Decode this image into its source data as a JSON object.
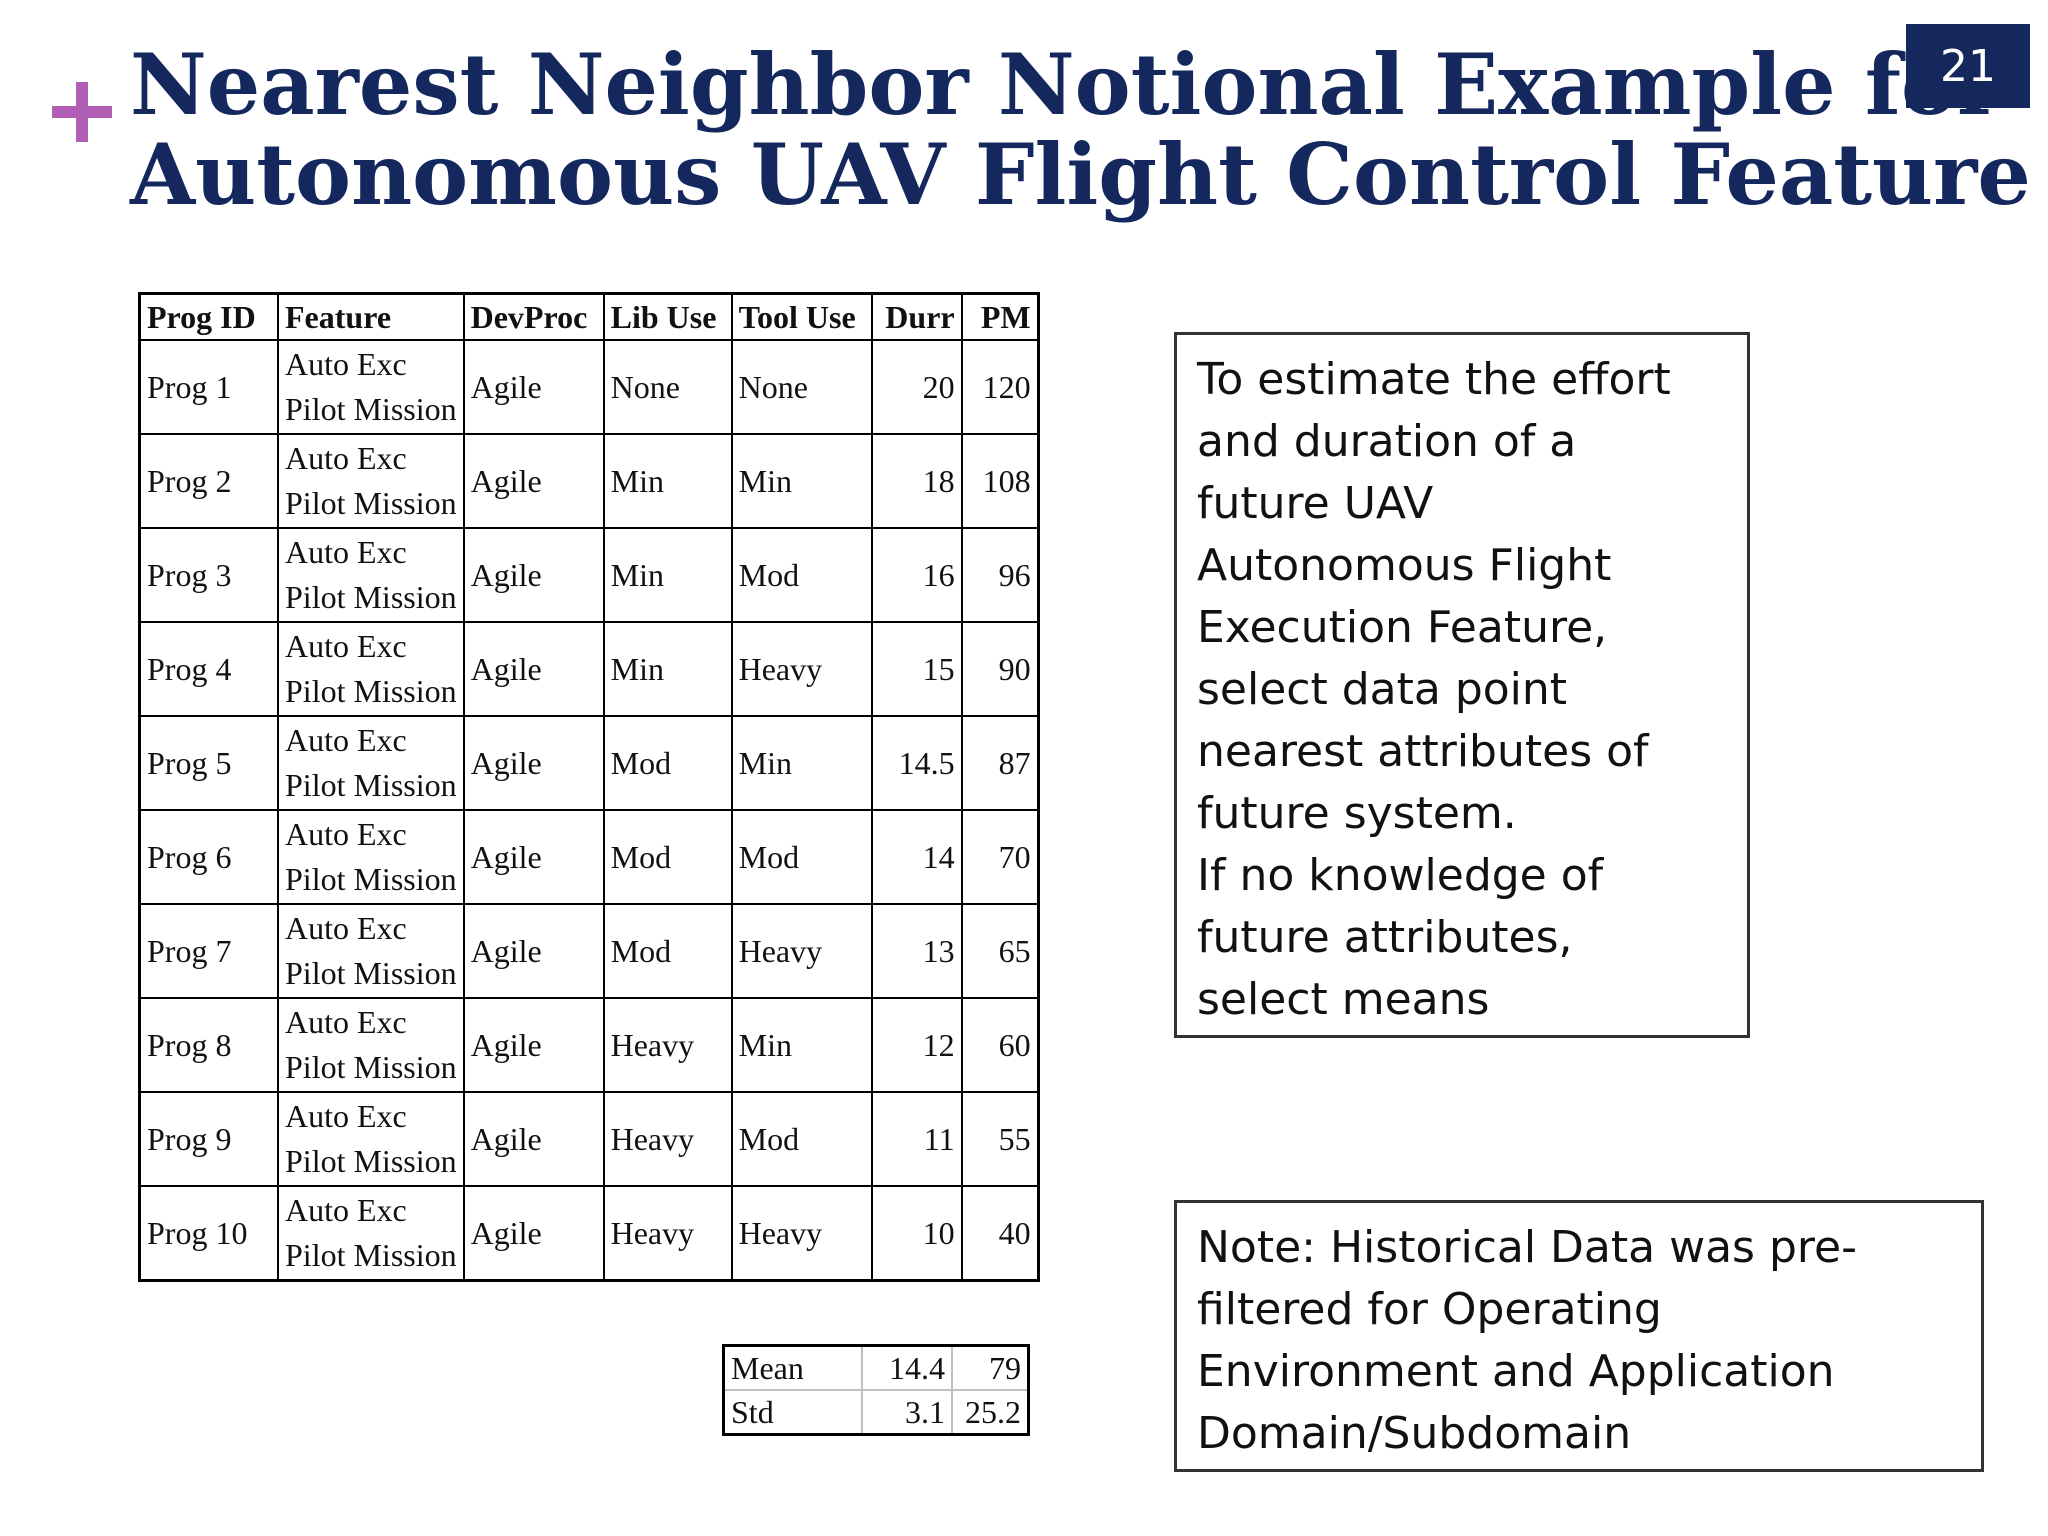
{
  "slide": {
    "title_lines": [
      "Nearest Neighbor Notional Example for",
      "Autonomous UAV Flight Control Feature"
    ],
    "page_number": "21",
    "accent_color": "#b05fb5",
    "brand_color": "#14285e",
    "decoration_icon": "plus-icon"
  },
  "table": {
    "headers": [
      "Prog ID",
      "Feature",
      "DevProc",
      "Lib Use",
      "Tool Use",
      "Durr",
      "PM"
    ],
    "rows": [
      {
        "id": "Prog 1",
        "feature_line1": "Auto Exc",
        "feature_line2": "Pilot Mission",
        "devproc": "Agile",
        "lib": "None",
        "tool": "None",
        "durr": "20",
        "pm": "120"
      },
      {
        "id": "Prog 2",
        "feature_line1": "Auto Exc",
        "feature_line2": "Pilot Mission",
        "devproc": "Agile",
        "lib": "Min",
        "tool": "Min",
        "durr": "18",
        "pm": "108"
      },
      {
        "id": "Prog 3",
        "feature_line1": "Auto Exc",
        "feature_line2": "Pilot Mission",
        "devproc": "Agile",
        "lib": "Min",
        "tool": "Mod",
        "durr": "16",
        "pm": "96"
      },
      {
        "id": "Prog 4",
        "feature_line1": "Auto Exc",
        "feature_line2": "Pilot Mission",
        "devproc": "Agile",
        "lib": "Min",
        "tool": "Heavy",
        "durr": "15",
        "pm": "90"
      },
      {
        "id": "Prog 5",
        "feature_line1": "Auto Exc",
        "feature_line2": "Pilot Mission",
        "devproc": "Agile",
        "lib": "Mod",
        "tool": "Min",
        "durr": "14.5",
        "pm": "87"
      },
      {
        "id": "Prog 6",
        "feature_line1": "Auto Exc",
        "feature_line2": "Pilot Mission",
        "devproc": "Agile",
        "lib": "Mod",
        "tool": "Mod",
        "durr": "14",
        "pm": "70"
      },
      {
        "id": "Prog 7",
        "feature_line1": "Auto Exc",
        "feature_line2": "Pilot Mission",
        "devproc": "Agile",
        "lib": "Mod",
        "tool": "Heavy",
        "durr": "13",
        "pm": "65"
      },
      {
        "id": "Prog 8",
        "feature_line1": "Auto Exc",
        "feature_line2": "Pilot Mission",
        "devproc": "Agile",
        "lib": "Heavy",
        "tool": "Min",
        "durr": "12",
        "pm": "60"
      },
      {
        "id": "Prog 9",
        "feature_line1": "Auto Exc",
        "feature_line2": "Pilot Mission",
        "devproc": "Agile",
        "lib": "Heavy",
        "tool": "Mod",
        "durr": "11",
        "pm": "55"
      },
      {
        "id": "Prog 10",
        "feature_line1": "Auto Exc",
        "feature_line2": "Pilot Mission",
        "devproc": "Agile",
        "lib": "Heavy",
        "tool": "Heavy",
        "durr": "10",
        "pm": "40"
      }
    ]
  },
  "summary": {
    "rows": [
      {
        "label": "Mean",
        "durr": "14.4",
        "pm": "79"
      },
      {
        "label": "Std",
        "durr": "3.1",
        "pm": "25.2"
      }
    ]
  },
  "estimate_box": {
    "lines": [
      "To estimate the effort",
      "and duration of a",
      "future UAV",
      "Autonomous Flight",
      "Execution Feature,",
      "select data point",
      "nearest attributes of",
      "future system.",
      "If no knowledge of",
      "future attributes,",
      "select means"
    ]
  },
  "note_box": {
    "lines": [
      "Note: Historical Data was pre-",
      "filtered for Operating",
      "Environment and Application",
      "Domain/Subdomain"
    ]
  }
}
